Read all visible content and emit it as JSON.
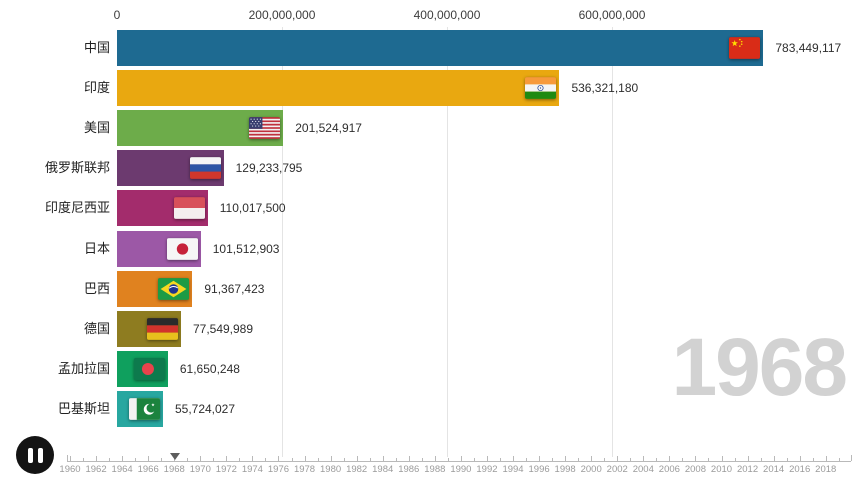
{
  "chart_data": {
    "type": "bar",
    "orientation": "horizontal",
    "title": "",
    "year_display": "1968",
    "x_axis": {
      "tick_labels": [
        "0",
        "200,000,000",
        "400,000,000",
        "600,000,000"
      ],
      "tick_values": [
        0,
        200000000,
        400000000,
        600000000
      ],
      "grid": true
    },
    "bars": [
      {
        "country": "中国",
        "value": 783449117,
        "value_label": "783,449,117",
        "color": "#1e6a91",
        "flag": "flag-china"
      },
      {
        "country": "印度",
        "value": 536321180,
        "value_label": "536,321,180",
        "color": "#e9a810",
        "flag": "flag-india"
      },
      {
        "country": "美国",
        "value": 201524917,
        "value_label": "201,524,917",
        "color": "#6dac4a",
        "flag": "flag-usa"
      },
      {
        "country": "俄罗斯联邦",
        "value": 129233795,
        "value_label": "129,233,795",
        "color": "#6c3a6f",
        "flag": "flag-russia"
      },
      {
        "country": "印度尼西亚",
        "value": 110017500,
        "value_label": "110,017,500",
        "color": "#a32c6c",
        "flag": "flag-indonesia"
      },
      {
        "country": "日本",
        "value": 101512903,
        "value_label": "101,512,903",
        "color": "#9c58a6",
        "flag": "flag-japan"
      },
      {
        "country": "巴西",
        "value": 91367423,
        "value_label": "91,367,423",
        "color": "#e0821f",
        "flag": "flag-brazil"
      },
      {
        "country": "德国",
        "value": 77549989,
        "value_label": "77,549,989",
        "color": "#8e7c20",
        "flag": "flag-germany"
      },
      {
        "country": "孟加拉国",
        "value": 61650248,
        "value_label": "61,650,248",
        "color": "#0fa05e",
        "flag": "flag-bangladesh"
      },
      {
        "country": "巴基斯坦",
        "value": 55724027,
        "value_label": "55,724,027",
        "color": "#28a7a0",
        "flag": "flag-pakistan"
      }
    ]
  },
  "player": {
    "pause_icon": "pause-icon",
    "slider_handle_icon": "slider-handle-icon",
    "timeline": {
      "start_year": 1960,
      "end_year": 2019,
      "current_year": 1968,
      "label_step": 2,
      "year_labels": [
        "1960",
        "1962",
        "1964",
        "1966",
        "1968",
        "1970",
        "1972",
        "1974",
        "1976",
        "1978",
        "1980",
        "1982",
        "1984",
        "1986",
        "1988",
        "1990",
        "1992",
        "1994",
        "1996",
        "1998",
        "2000",
        "2002",
        "2004",
        "2006",
        "2008",
        "2010",
        "2012",
        "2014",
        "2016",
        "2018"
      ]
    }
  },
  "colors": {
    "grid": "#e4e4e4",
    "axis_text": "#3d3d3d",
    "value_text": "#2e2e2e",
    "big_year_text": "#d2d2d2",
    "timeline_text": "#9b9b9b"
  }
}
